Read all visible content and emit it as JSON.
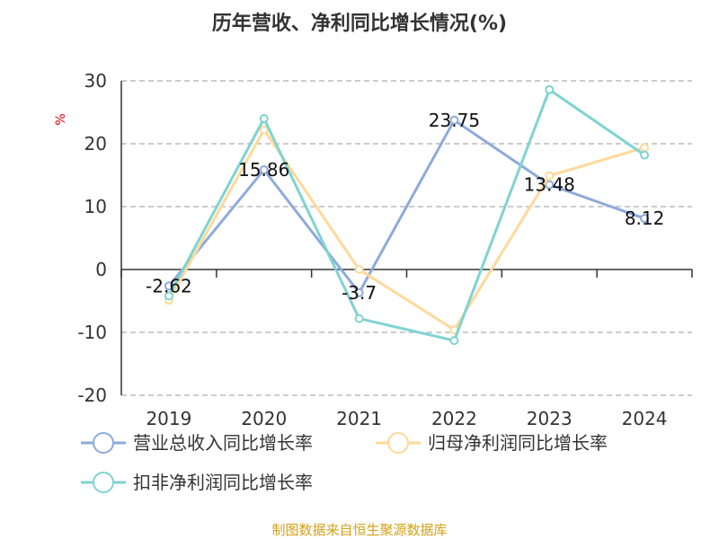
{
  "chart_data": {
    "type": "line",
    "title": "历年营收、净利同比增长情况(%)",
    "ylabel": "%",
    "categories": [
      "2019",
      "2020",
      "2021",
      "2022",
      "2023",
      "2024"
    ],
    "ylim": [
      -20,
      30
    ],
    "yticks": [
      30,
      20,
      10,
      0,
      -10,
      -20
    ],
    "grid": true,
    "legend_position": "bottom",
    "series": [
      {
        "name": "营业总收入同比增长率",
        "color": "#8eaadb",
        "values": [
          -2.62,
          15.86,
          -3.7,
          23.75,
          13.48,
          8.12
        ],
        "labels": [
          "-2.62",
          "15.86",
          "-3.7",
          "23.75",
          "13.48",
          "8.12"
        ]
      },
      {
        "name": "归母净利润同比增长率",
        "color": "#ffd99a",
        "values": [
          -4.9,
          22.2,
          0.0,
          -9.6,
          14.9,
          19.4
        ]
      },
      {
        "name": "扣非净利润同比增长率",
        "color": "#7fd3d3",
        "values": [
          -4.2,
          24.0,
          -7.8,
          -11.3,
          28.6,
          18.2
        ]
      }
    ],
    "source": "制图数据来自恒生聚源数据库"
  }
}
